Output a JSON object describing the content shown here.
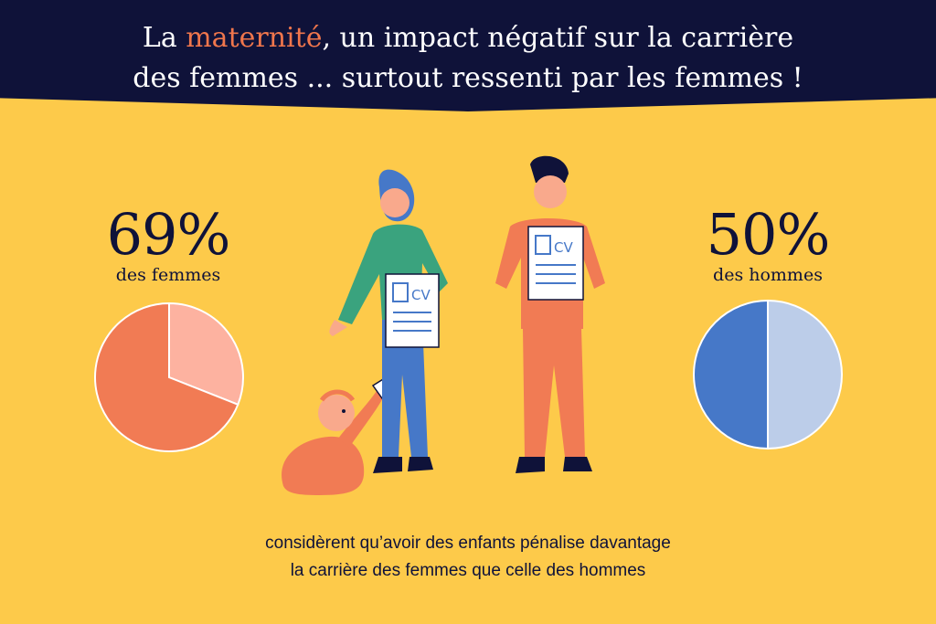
{
  "header": {
    "title_before": "La ",
    "title_highlight": "maternité",
    "title_after": ", un impact négatif sur la carrière",
    "title_line2": "des femmes ... surtout ressenti par les femmes !",
    "highlight_color": "#f0764c"
  },
  "illustration": {
    "cv_text": "CV"
  },
  "footer": {
    "line1": "considèrent qu’avoir des enfants pénalise davantage",
    "line2": "la carrière des femmes que celle des hommes"
  },
  "chart_data": [
    {
      "type": "pie",
      "value_label": "69%",
      "label": "des femmes",
      "slices": [
        {
          "value": 69,
          "color": "#f17b54"
        },
        {
          "value": 31,
          "color": "#fdb2a0"
        }
      ]
    },
    {
      "type": "pie",
      "value_label": "50%",
      "label": "des hommes",
      "slices": [
        {
          "value": 50,
          "color": "#4678c8"
        },
        {
          "value": 50,
          "color": "#bccde9"
        }
      ]
    }
  ]
}
